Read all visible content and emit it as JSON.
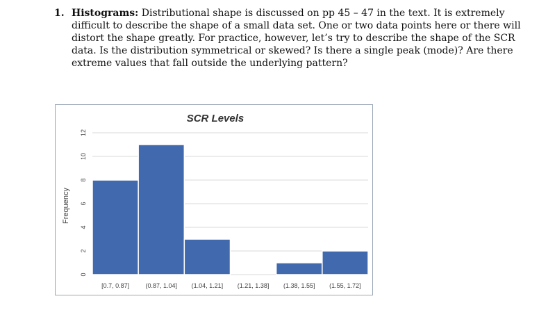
{
  "question": {
    "number": "1.",
    "lead": "Histograms:",
    "text": "Distributional shape is discussed on pp 45 – 47 in the text. It is extremely difficult to describe the shape of a small data set. One or two data points here or there will distort the shape greatly. For practice, however, let’s try to describe the shape of the SCR data. Is the distribution symmetrical or skewed? Is there a single peak (mode)? Are there extreme values that fall outside the underlying pattern?"
  },
  "chart_data": {
    "type": "bar",
    "title": "SCR Levels",
    "xlabel": "",
    "ylabel": "Frequency",
    "categories": [
      "[0.7, 0.87]",
      "(0.87, 1.04]",
      "(1.04, 1.21]",
      "(1.21, 1.38]",
      "(1.38, 1.55]",
      "(1.55, 1.72]"
    ],
    "values": [
      8,
      11,
      3,
      0,
      1,
      2
    ],
    "yticks": [
      "0",
      "2",
      "4",
      "6",
      "8",
      "10",
      "12"
    ],
    "ylim": [
      0,
      12
    ],
    "grid": true,
    "bar_color": "#4169ae",
    "grid_color": "#d9d9d9"
  }
}
